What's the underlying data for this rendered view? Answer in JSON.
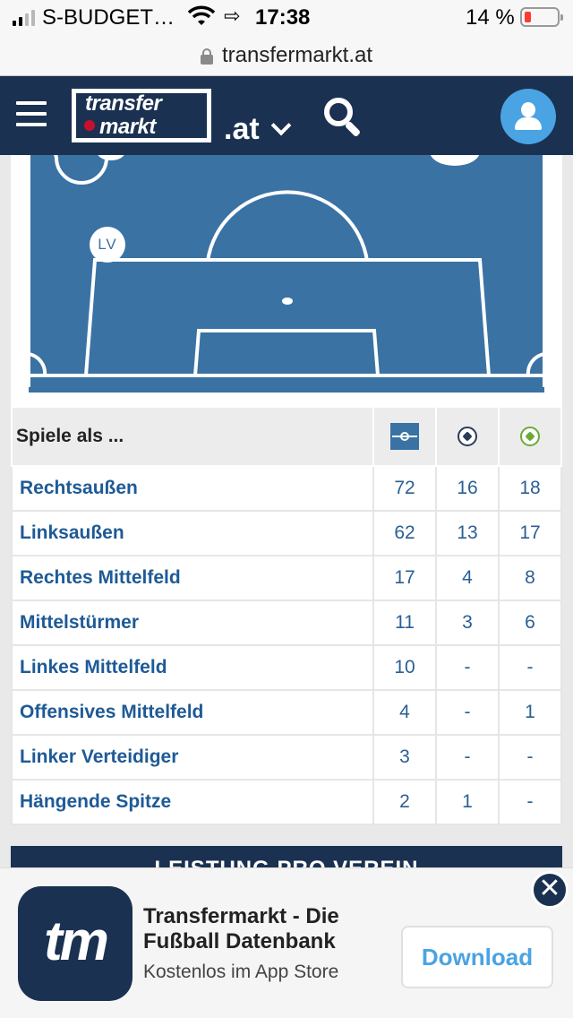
{
  "status_bar": {
    "carrier": "S-BUDGET…",
    "time": "17:38",
    "battery_percent": "14 %",
    "battery_level": 0.14
  },
  "browser": {
    "url": "transfermarkt.at"
  },
  "header": {
    "logo_line1": "transfer",
    "logo_line2": "markt",
    "domain": ".at"
  },
  "pitch": {
    "marker_label": "LV"
  },
  "positions_table": {
    "header": "Spiele als ...",
    "icon_columns": [
      "pitch-icon",
      "ball-icon",
      "green-ball-icon"
    ],
    "rows": [
      {
        "position": "Rechtsaußen",
        "games": "72",
        "goals": "16",
        "assists": "18"
      },
      {
        "position": "Linksaußen",
        "games": "62",
        "goals": "13",
        "assists": "17"
      },
      {
        "position": "Rechtes Mittelfeld",
        "games": "17",
        "goals": "4",
        "assists": "8"
      },
      {
        "position": "Mittelstürmer",
        "games": "11",
        "goals": "3",
        "assists": "6"
      },
      {
        "position": "Linkes Mittelfeld",
        "games": "10",
        "goals": "-",
        "assists": "-"
      },
      {
        "position": "Offensives Mittelfeld",
        "games": "4",
        "goals": "-",
        "assists": "1"
      },
      {
        "position": "Linker Verteidiger",
        "games": "3",
        "goals": "-",
        "assists": "-"
      },
      {
        "position": "Hängende Spitze",
        "games": "2",
        "goals": "1",
        "assists": "-"
      }
    ]
  },
  "section": {
    "title": "LEISTUNG PRO VEREIN"
  },
  "app_banner": {
    "icon_text": "tm",
    "title": "Transfermarkt - Die Fußball Datenbank",
    "subtitle": "Kostenlos im App Store",
    "download_label": "Download",
    "close_symbol": "✕"
  },
  "colors": {
    "header_bg": "#1a3151",
    "pitch": "#3a72a4",
    "link": "#1e5a96",
    "accent": "#4aa3e2"
  }
}
